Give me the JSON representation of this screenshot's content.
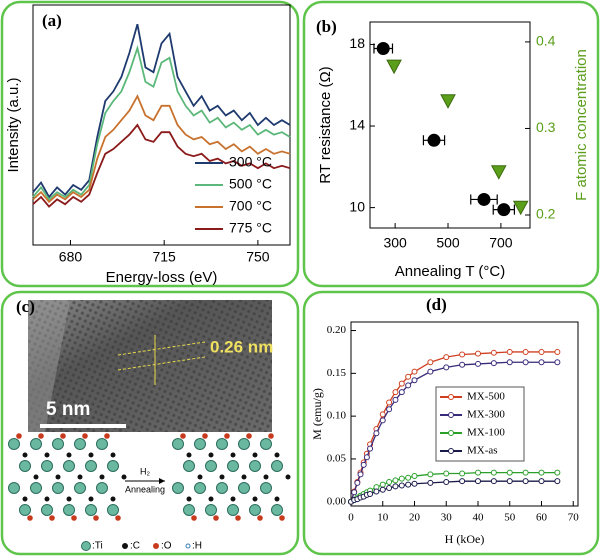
{
  "chart_data": [
    {
      "type": "line",
      "label": "(a)",
      "xlabel": "Energy-loss (eV)",
      "ylabel": "Intensity (a.u.)",
      "x": [
        666,
        669,
        672,
        675,
        678,
        681,
        684,
        687,
        690,
        693,
        696,
        699,
        702,
        705,
        708,
        711,
        714,
        717,
        720,
        723,
        726,
        729,
        732,
        735,
        738,
        741,
        744,
        747,
        750,
        753,
        756,
        759,
        762
      ],
      "xlim": [
        666,
        762
      ],
      "xticks": [
        680,
        715,
        750
      ],
      "ylim": [
        0,
        100
      ],
      "legend": "lower right",
      "series": [
        {
          "name": "300 °C",
          "color": "#1f3a6e",
          "values": [
            22,
            26,
            20,
            24,
            21,
            25,
            23,
            27,
            45,
            60,
            64,
            70,
            80,
            92,
            74,
            72,
            84,
            88,
            70,
            64,
            58,
            62,
            56,
            58,
            54,
            56,
            52,
            55,
            50,
            53,
            50,
            52,
            50
          ]
        },
        {
          "name": "500 °C",
          "color": "#5cb87a",
          "values": [
            20,
            24,
            19,
            22,
            20,
            23,
            21,
            25,
            42,
            55,
            60,
            64,
            72,
            82,
            68,
            66,
            76,
            78,
            64,
            58,
            54,
            56,
            51,
            53,
            49,
            51,
            48,
            50,
            46,
            48,
            46,
            47,
            45
          ]
        },
        {
          "name": "700 °C",
          "color": "#c8722e",
          "values": [
            19,
            22,
            18,
            21,
            19,
            22,
            20,
            23,
            36,
            45,
            48,
            52,
            56,
            62,
            54,
            52,
            58,
            58,
            50,
            46,
            44,
            45,
            42,
            43,
            40,
            42,
            39,
            41,
            38,
            40,
            38,
            39,
            38
          ]
        },
        {
          "name": "775 °C",
          "color": "#8b1a1a",
          "values": [
            17,
            20,
            16,
            19,
            17,
            20,
            18,
            21,
            30,
            38,
            40,
            43,
            46,
            50,
            44,
            43,
            47,
            47,
            41,
            38,
            37,
            38,
            35,
            36,
            34,
            35,
            33,
            34,
            32,
            34,
            32,
            33,
            32
          ]
        }
      ]
    },
    {
      "type": "scatter",
      "label": "(b)",
      "xlabel": "Annealing T (°C)",
      "ylabel": "RT resistance (Ω)",
      "y2label": "F atomic concentration",
      "y2color": "#5a9e1a",
      "xlim": [
        205,
        810
      ],
      "xticks": [
        300,
        500,
        700
      ],
      "ylim": [
        9,
        19.1
      ],
      "yticks": [
        10,
        14,
        18
      ],
      "y2lim": [
        0.185,
        0.423
      ],
      "y2ticks": [
        0.2,
        0.3,
        0.4
      ],
      "series": [
        {
          "marker": "circle",
          "color": "#000000",
          "x": [
            255,
            447,
            636,
            711
          ],
          "values": [
            17.8,
            13.3,
            10.4,
            9.9
          ],
          "xerr": [
            35,
            40,
            50,
            40
          ]
        },
        {
          "marker": "triangle",
          "color": "#5a9e1a",
          "axis": "y2",
          "x": [
            296,
            500,
            692,
            775
          ],
          "values": [
            0.372,
            0.332,
            0.25,
            0.209
          ]
        }
      ]
    },
    {
      "type": "line",
      "label": "(d)",
      "xlabel": "H (kOe)",
      "ylabel": "M (emu/g)",
      "markers": true,
      "legend": "center right",
      "x": [
        0,
        1,
        2,
        3,
        4,
        5,
        6,
        8,
        10,
        12,
        14,
        16,
        18,
        20,
        25,
        30,
        35,
        40,
        45,
        50,
        55,
        60,
        65
      ],
      "xlim": [
        0,
        71.5
      ],
      "xticks": [
        0,
        10,
        20,
        30,
        40,
        50,
        60,
        70
      ],
      "ylim": [
        -0.005,
        0.21
      ],
      "yticks": [
        {
          "value": 0,
          "label": "0.00"
        },
        {
          "value": 0.05,
          "label": "0.05"
        },
        {
          "value": 0.1,
          "label": "0.10"
        },
        {
          "value": 0.15,
          "label": "0.15"
        },
        {
          "value": 0.2,
          "label": "0.20"
        }
      ],
      "series": [
        {
          "name": "MX-500",
          "color": "#d04020",
          "values": [
            0,
            0.012,
            0.023,
            0.034,
            0.046,
            0.056,
            0.067,
            0.085,
            0.102,
            0.116,
            0.128,
            0.138,
            0.146,
            0.152,
            0.163,
            0.169,
            0.172,
            0.173,
            0.174,
            0.175,
            0.175,
            0.175,
            0.175
          ]
        },
        {
          "name": "MX-300",
          "color": "#3a2a7a",
          "values": [
            0,
            0.011,
            0.022,
            0.032,
            0.043,
            0.052,
            0.062,
            0.08,
            0.095,
            0.108,
            0.119,
            0.128,
            0.136,
            0.142,
            0.152,
            0.157,
            0.16,
            0.161,
            0.162,
            0.163,
            0.163,
            0.163,
            0.163
          ]
        },
        {
          "name": "MX-100",
          "color": "#2aa02a",
          "values": [
            0,
            0.002,
            0.005,
            0.007,
            0.009,
            0.011,
            0.013,
            0.017,
            0.02,
            0.023,
            0.025,
            0.027,
            0.028,
            0.03,
            0.032,
            0.033,
            0.033,
            0.034,
            0.034,
            0.034,
            0.034,
            0.034,
            0.034
          ]
        },
        {
          "name": "MX-as",
          "color": "#1a1a4a",
          "values": [
            0,
            0.002,
            0.003,
            0.005,
            0.006,
            0.008,
            0.009,
            0.012,
            0.014,
            0.016,
            0.018,
            0.019,
            0.02,
            0.021,
            0.022,
            0.023,
            0.024,
            0.024,
            0.024,
            0.024,
            0.024,
            0.024,
            0.024
          ]
        }
      ]
    }
  ],
  "panel_c": {
    "label": "(c)",
    "spacing": "0.26 nm",
    "scale_bar": "5 nm",
    "arrow_top": "H₂",
    "arrow_bottom": "Annealing",
    "legend": [
      ":Ti",
      ":C",
      ":O",
      ":H"
    ]
  }
}
